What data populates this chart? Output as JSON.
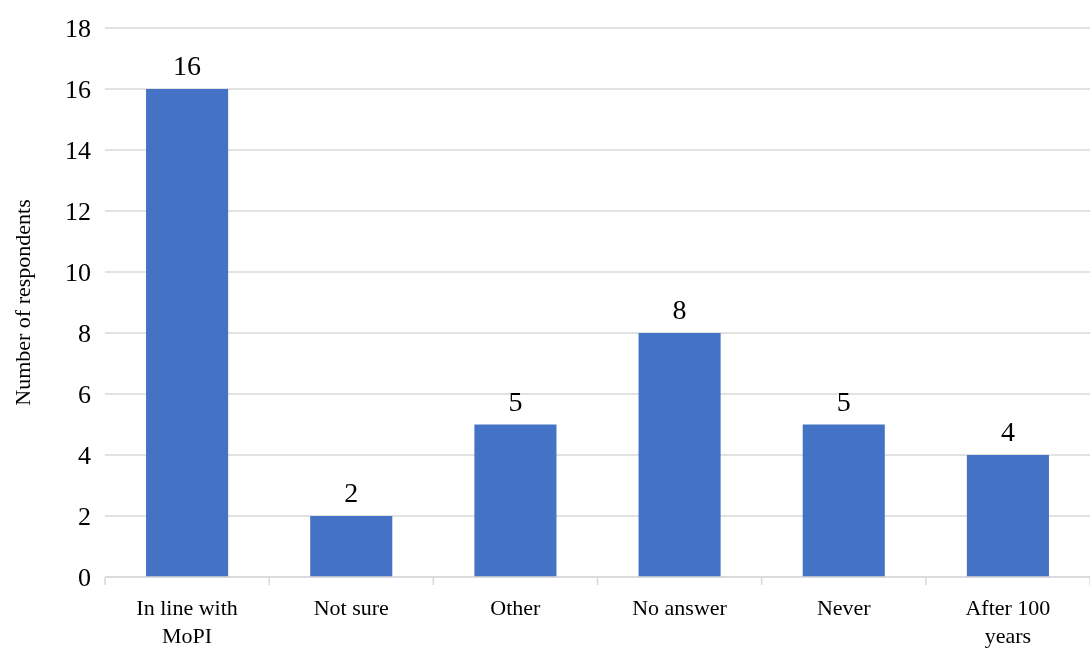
{
  "chart_data": {
    "type": "bar",
    "ylabel": "Number of respondents",
    "categories": [
      "In line with MoPI",
      "Not sure",
      "Other",
      "No answer",
      "Never",
      "After 100 years"
    ],
    "values": [
      16,
      2,
      5,
      8,
      5,
      4
    ],
    "color": "#4472c4",
    "ylim": [
      0,
      18
    ],
    "yticks": [
      0,
      2,
      4,
      6,
      8,
      10,
      12,
      14,
      16,
      18
    ],
    "grid": "y",
    "data_labels": true
  }
}
